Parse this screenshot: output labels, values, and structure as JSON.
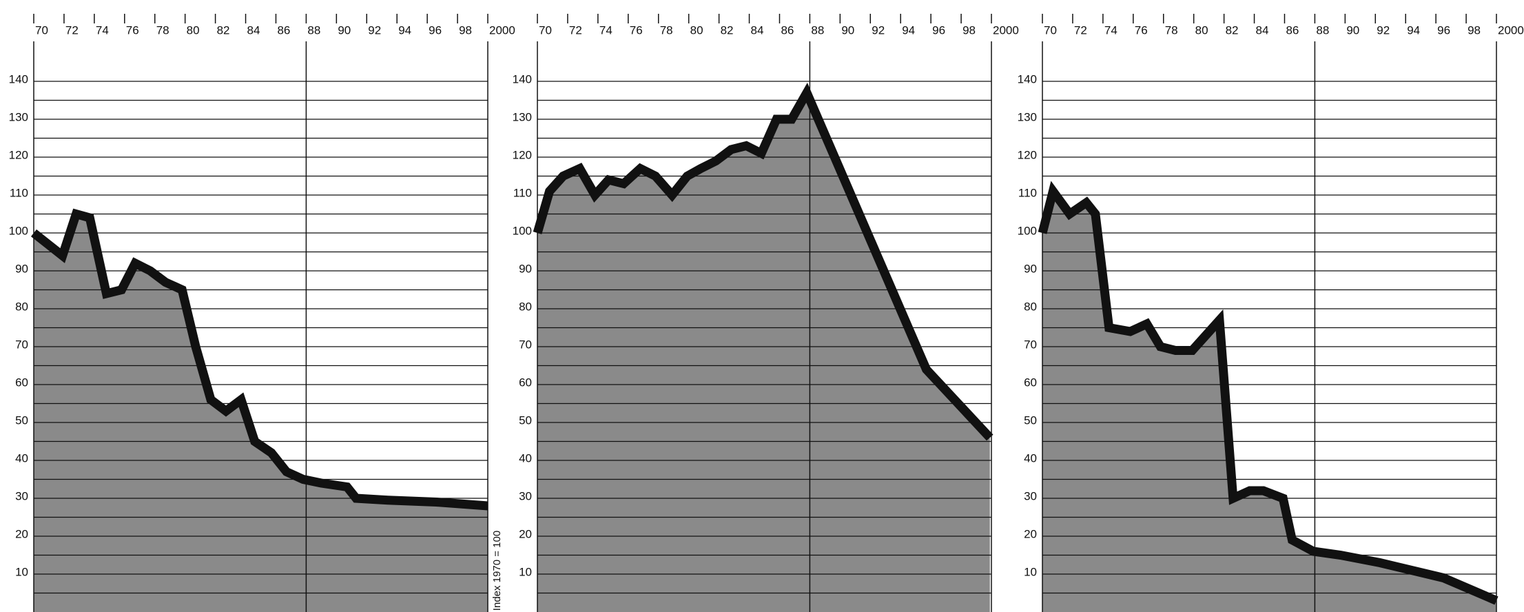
{
  "chart_data": [
    {
      "type": "area",
      "x": [
        1970,
        1971.9,
        1972.8,
        1973.7,
        1974.8,
        1975.8,
        1976.7,
        1977.7,
        1978.7,
        1979.8,
        1980.7,
        1981.7,
        1982.7,
        1983.7,
        1984.6,
        1985.7,
        1986.7,
        1987.8,
        1989,
        1990.7,
        1991.3,
        1993.4,
        1996.6,
        2000
      ],
      "values": [
        100,
        94,
        105,
        104,
        84,
        85,
        92,
        90,
        87,
        85,
        70,
        56,
        53,
        56,
        45,
        42,
        37,
        35,
        34,
        33,
        30,
        29.5,
        29,
        28
      ],
      "xlim": [
        1970,
        2000
      ],
      "xticks": [
        {
          "value": 1970,
          "label": "70"
        },
        {
          "value": 1972,
          "label": "72"
        },
        {
          "value": 1974,
          "label": "74"
        },
        {
          "value": 1976,
          "label": "76"
        },
        {
          "value": 1978,
          "label": "78"
        },
        {
          "value": 1980,
          "label": "80"
        },
        {
          "value": 1982,
          "label": "82"
        },
        {
          "value": 1984,
          "label": "84"
        },
        {
          "value": 1986,
          "label": "86"
        },
        {
          "value": 1988,
          "label": "88"
        },
        {
          "value": 1990,
          "label": "90"
        },
        {
          "value": 1992,
          "label": "92"
        },
        {
          "value": 1994,
          "label": "94"
        },
        {
          "value": 1996,
          "label": "96"
        },
        {
          "value": 1998,
          "label": "98"
        },
        2000
      ],
      "ylim": [
        0,
        150
      ],
      "yticks": [
        10,
        20,
        30,
        40,
        50,
        60,
        70,
        80,
        90,
        100,
        110,
        120,
        130,
        140
      ],
      "minor_yticks": [
        5,
        15,
        25,
        35,
        45,
        55,
        65,
        75,
        85,
        95,
        105,
        115,
        125,
        135
      ],
      "reference_x": 1988,
      "grid": true,
      "color": "#8a8a8a",
      "line_color": "#111111"
    },
    {
      "type": "area",
      "x": [
        1970,
        1970.8,
        1971.7,
        1972.8,
        1973.8,
        1974.7,
        1975.7,
        1976.8,
        1977.8,
        1978.9,
        1979.9,
        1980.8,
        1981.8,
        1982.8,
        1983.8,
        1984.8,
        1985.8,
        1986.8,
        1987.8,
        1995.7,
        1999.9
      ],
      "values": [
        100,
        111,
        115,
        117,
        110,
        114,
        113,
        117,
        115,
        110,
        115,
        117,
        119,
        122,
        123,
        121,
        130,
        130,
        137,
        64,
        46
      ],
      "xlim": [
        1970,
        2000
      ],
      "xticks": [
        {
          "value": 1970,
          "label": "70"
        },
        {
          "value": 1972,
          "label": "72"
        },
        {
          "value": 1974,
          "label": "74"
        },
        {
          "value": 1976,
          "label": "76"
        },
        {
          "value": 1978,
          "label": "78"
        },
        {
          "value": 1980,
          "label": "80"
        },
        {
          "value": 1982,
          "label": "82"
        },
        {
          "value": 1984,
          "label": "84"
        },
        {
          "value": 1986,
          "label": "86"
        },
        {
          "value": 1988,
          "label": "88"
        },
        {
          "value": 1990,
          "label": "90"
        },
        {
          "value": 1992,
          "label": "92"
        },
        {
          "value": 1994,
          "label": "94"
        },
        {
          "value": 1996,
          "label": "96"
        },
        {
          "value": 1998,
          "label": "98"
        },
        2000
      ],
      "ylim": [
        0,
        150
      ],
      "yticks": [
        10,
        20,
        30,
        40,
        50,
        60,
        70,
        80,
        90,
        100,
        110,
        120,
        130,
        140
      ],
      "minor_yticks": [
        5,
        15,
        25,
        35,
        45,
        55,
        65,
        75,
        85,
        95,
        105,
        115,
        125,
        135
      ],
      "ylabel": "Index 1970 = 100",
      "reference_x": 1988,
      "grid": true,
      "color": "#8a8a8a",
      "line_color": "#111111"
    },
    {
      "type": "area",
      "x": [
        1970,
        1970.7,
        1971.8,
        1972.9,
        1973.5,
        1974.4,
        1975.8,
        1976.9,
        1977.8,
        1978.8,
        1979.9,
        1980.8,
        1981.7,
        1982.6,
        1983.7,
        1984.6,
        1985.9,
        1986.5,
        1987.9,
        1989.7,
        1992.3,
        1996.5,
        2000
      ],
      "values": [
        100,
        111,
        105,
        108,
        105,
        75,
        74,
        76,
        70,
        69,
        69,
        73,
        77,
        30,
        32,
        32,
        30,
        19,
        16,
        15,
        13,
        9,
        3
      ],
      "xlim": [
        1970,
        2000
      ],
      "xticks": [
        {
          "value": 1970,
          "label": "70"
        },
        {
          "value": 1972,
          "label": "72"
        },
        {
          "value": 1974,
          "label": "74"
        },
        {
          "value": 1976,
          "label": "76"
        },
        {
          "value": 1978,
          "label": "78"
        },
        {
          "value": 1980,
          "label": "80"
        },
        {
          "value": 1982,
          "label": "82"
        },
        {
          "value": 1984,
          "label": "84"
        },
        {
          "value": 1986,
          "label": "86"
        },
        {
          "value": 1988,
          "label": "88"
        },
        {
          "value": 1990,
          "label": "90"
        },
        {
          "value": 1992,
          "label": "92"
        },
        {
          "value": 1994,
          "label": "94"
        },
        {
          "value": 1996,
          "label": "96"
        },
        {
          "value": 1998,
          "label": "98"
        },
        2000
      ],
      "ylim": [
        0,
        150
      ],
      "yticks": [
        10,
        20,
        30,
        40,
        50,
        60,
        70,
        80,
        90,
        100,
        110,
        120,
        130,
        140
      ],
      "minor_yticks": [
        5,
        15,
        25,
        35,
        45,
        55,
        65,
        75,
        85,
        95,
        105,
        115,
        125,
        135
      ],
      "reference_x": 1988,
      "grid": true,
      "color": "#8a8a8a",
      "line_color": "#111111"
    }
  ]
}
